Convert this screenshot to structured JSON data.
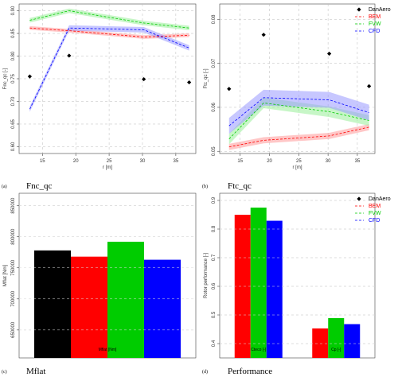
{
  "legend_series": [
    {
      "name": "DanAero",
      "color": "#000000",
      "style": "diamond"
    },
    {
      "name": "BEM",
      "color": "#ff0000",
      "style": "dashed"
    },
    {
      "name": "FVW",
      "color": "#00cc00",
      "style": "dashed"
    },
    {
      "name": "CFD",
      "color": "#0000ff",
      "style": "dashed"
    }
  ],
  "captions": {
    "a": {
      "letter": "(a)",
      "text": "Fnc_qc"
    },
    "b": {
      "letter": "(b)",
      "text": "Ftc_qc"
    },
    "c": {
      "letter": "(c)",
      "text": "Mflat"
    },
    "d": {
      "letter": "(d)",
      "text": "Performance"
    }
  },
  "chart_data": [
    {
      "type": "line",
      "id": "a",
      "xlabel": "r [m]",
      "ylabel": "Fnc_qc [-]",
      "xlim": [
        11.5,
        38
      ],
      "ylim": [
        0.585,
        0.915
      ],
      "xticks": [
        15,
        20,
        25,
        30,
        35
      ],
      "yticks": [
        0.6,
        0.65,
        0.7,
        0.75,
        0.8,
        0.85,
        0.9
      ],
      "grid": true,
      "legend": "none",
      "x": [
        13.1,
        19.0,
        30.2,
        37.0
      ],
      "danaero": [
        0.755,
        0.801,
        0.749,
        0.742
      ],
      "series": [
        {
          "name": "BEM",
          "values": [
            0.862,
            0.856,
            0.842,
            0.846
          ],
          "band": 0.004
        },
        {
          "name": "FVW",
          "values": [
            0.879,
            0.9,
            0.873,
            0.862
          ],
          "band": 0.005
        },
        {
          "name": "CFD",
          "values": [
            0.683,
            0.862,
            0.858,
            0.818
          ],
          "band": 0.006
        }
      ]
    },
    {
      "type": "line",
      "id": "b",
      "xlabel": "r [m]",
      "ylabel": "Ftc_qc [-]",
      "xlim": [
        11.5,
        38
      ],
      "ylim": [
        0.0495,
        0.0835
      ],
      "xticks": [
        15,
        20,
        25,
        30,
        35
      ],
      "yticks": [
        0.05,
        0.06,
        0.07,
        0.08
      ],
      "grid": true,
      "legend": "top-right",
      "x": [
        13.1,
        19.0,
        30.2,
        37.0
      ],
      "danaero": [
        0.0642,
        0.0765,
        0.0722,
        0.0648
      ],
      "series": [
        {
          "name": "BEM",
          "values": [
            0.051,
            0.0525,
            0.0535,
            0.0555
          ],
          "band": 0.0007
        },
        {
          "name": "FVW",
          "values": [
            0.0528,
            0.061,
            0.059,
            0.057
          ],
          "band": 0.0012
        },
        {
          "name": "CFD",
          "values": [
            0.0558,
            0.0622,
            0.0617,
            0.0588
          ],
          "band": 0.0018
        }
      ]
    },
    {
      "type": "bar",
      "id": "c",
      "ylabel": "Mflat [Nm]",
      "ylim": [
        605000,
        870000
      ],
      "yticks": [
        650000,
        700000,
        750000,
        800000,
        850000
      ],
      "ytick_labels": [
        "650000",
        "700000",
        "750000",
        "800000",
        "850000"
      ],
      "grid": true,
      "categories": [
        "Mflat [Nm]"
      ],
      "series": [
        {
          "name": "DanAero",
          "values": [
            778000
          ]
        },
        {
          "name": "BEM",
          "values": [
            768000
          ]
        },
        {
          "name": "FVW",
          "values": [
            792000
          ]
        },
        {
          "name": "CFD",
          "values": [
            763000
          ]
        }
      ]
    },
    {
      "type": "bar",
      "id": "d",
      "ylabel": "Rotor performance [-]",
      "ylim": [
        0.35,
        0.925
      ],
      "yticks": [
        0.4,
        0.5,
        0.6,
        0.7,
        0.8,
        0.9
      ],
      "grid": true,
      "legend": "top-right",
      "categories": [
        "Cteco [-]",
        "Cp [-]"
      ],
      "series": [
        {
          "name": "BEM",
          "values": [
            0.85,
            0.453
          ]
        },
        {
          "name": "FVW",
          "values": [
            0.875,
            0.489
          ]
        },
        {
          "name": "CFD",
          "values": [
            0.829,
            0.468
          ]
        }
      ]
    }
  ]
}
